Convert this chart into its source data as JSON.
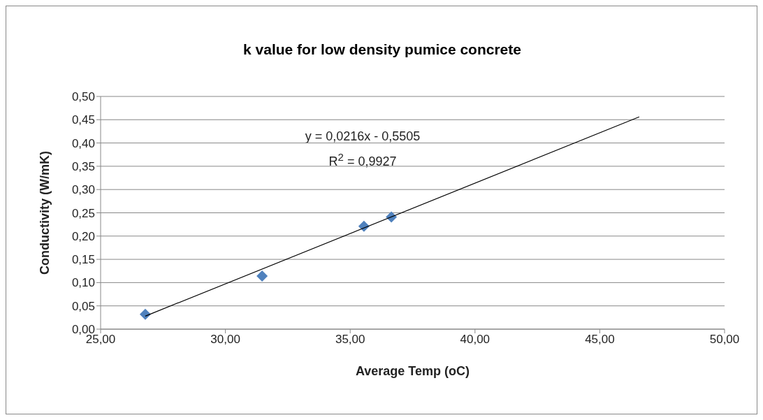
{
  "chart_data": {
    "type": "scatter",
    "title": "k value for low density pumice concrete",
    "xlabel": "Average Temp (oC)",
    "ylabel": "Conductivity (W/mK)",
    "annotations": [
      "y = 0,0216x - 0,5505",
      "R$^{2}$ = 0,9927"
    ],
    "series": [
      {
        "type": "scatter",
        "color": "#4f81bd",
        "marker": "diamond",
        "x": [
          26.79,
          31.47,
          35.55,
          36.65
        ],
        "values": [
          0.032,
          0.114,
          0.221,
          0.241
        ]
      },
      {
        "type": "line",
        "color": "#000000",
        "marker": "none",
        "x": [
          26.79,
          46.58
        ],
        "values": [
          0.028,
          0.456
        ]
      }
    ],
    "xlim": [
      25,
      50
    ],
    "xticks": [
      {
        "value": 25,
        "label": "25,00"
      },
      {
        "value": 30,
        "label": "30,00"
      },
      {
        "value": 35,
        "label": "35,00"
      },
      {
        "value": 40,
        "label": "40,00"
      },
      {
        "value": 45,
        "label": "45,00"
      },
      {
        "value": 50,
        "label": "50,00"
      }
    ],
    "ylim": [
      0,
      0.5
    ],
    "yticks": [
      {
        "value": 0,
        "label": "0,00"
      },
      {
        "value": 0.05,
        "label": "0,05"
      },
      {
        "value": 0.1,
        "label": "0,10"
      },
      {
        "value": 0.15,
        "label": "0,15"
      },
      {
        "value": 0.2,
        "label": "0,20"
      },
      {
        "value": 0.25,
        "label": "0,25"
      },
      {
        "value": 0.3,
        "label": "0,30"
      },
      {
        "value": 0.35,
        "label": "0,35"
      },
      {
        "value": 0.4,
        "label": "0,40"
      },
      {
        "value": 0.45,
        "label": "0,45"
      },
      {
        "value": 0.5,
        "label": "0,50"
      }
    ],
    "grid": "y",
    "legend": false
  }
}
